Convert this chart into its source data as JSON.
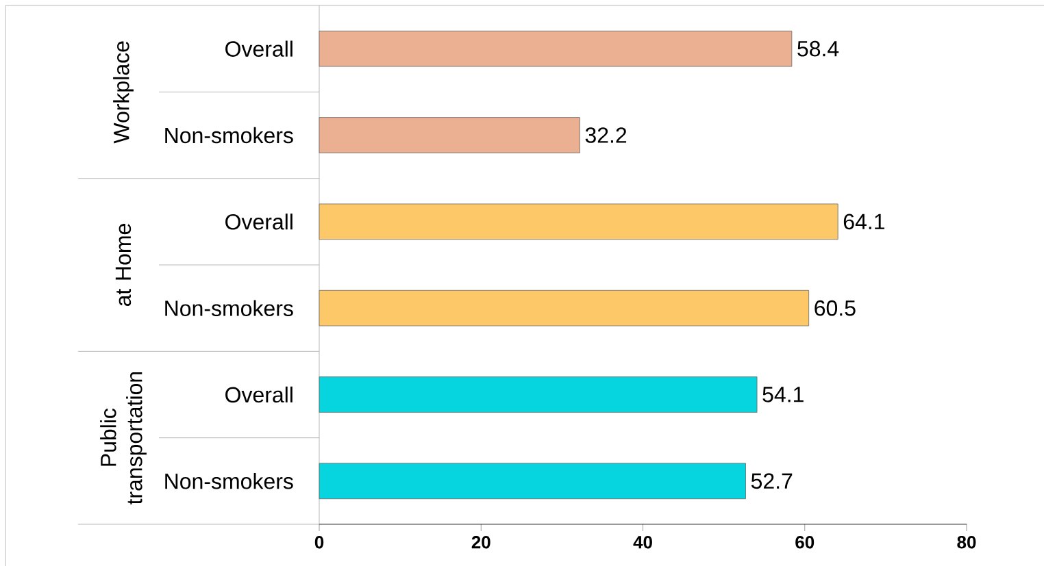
{
  "chart_data": {
    "type": "bar",
    "orientation": "horizontal",
    "categories": [
      "Overall",
      "Non-smokers",
      "Overall",
      "Non-smokers",
      "Overall",
      "Non-smokers"
    ],
    "values": [
      58.4,
      32.2,
      64.1,
      60.5,
      54.1,
      52.7
    ],
    "colors": [
      "#ebaf91",
      "#ebaf91",
      "#fdc968",
      "#fdc968",
      "#06d5e0",
      "#06d5e0"
    ],
    "xlim": [
      0,
      80
    ],
    "xticks": [
      0,
      20,
      40,
      60,
      80
    ],
    "data_labels": true,
    "annotations": [
      "Workplace",
      "at Home",
      "Public transportation"
    ]
  }
}
